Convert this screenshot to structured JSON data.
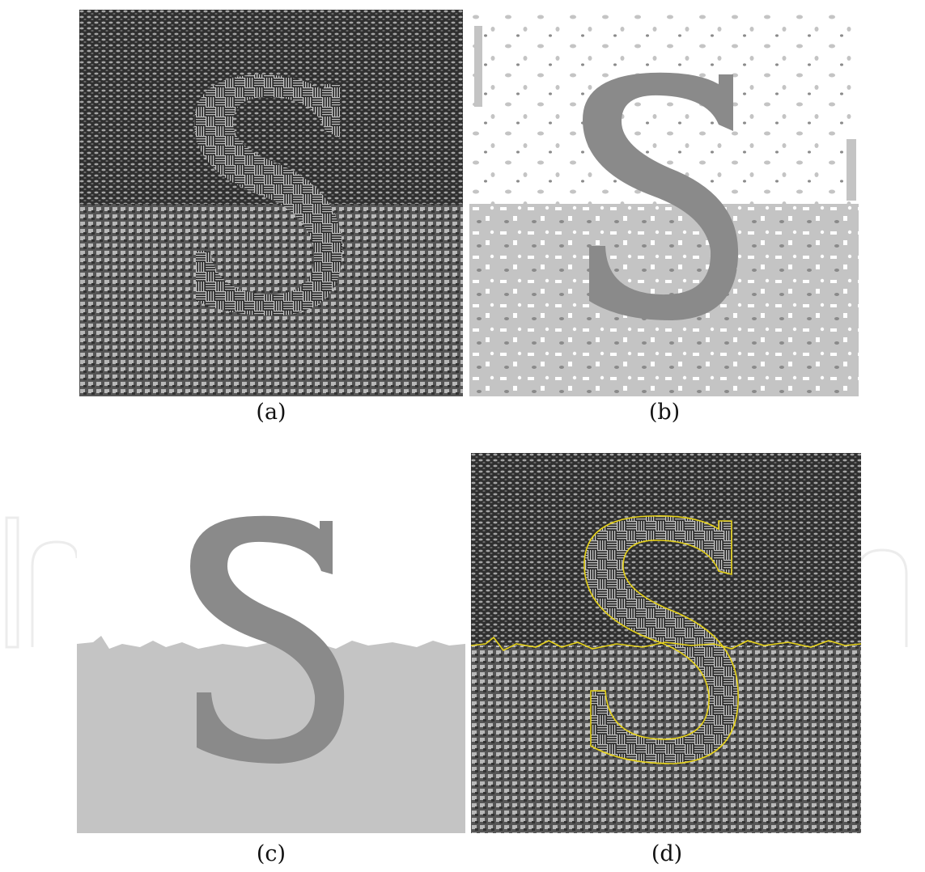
{
  "figure": {
    "panels": [
      {
        "id": "a",
        "caption": "(a)",
        "content": "textured-image"
      },
      {
        "id": "b",
        "caption": "(b)",
        "content": "noisy-segmentation"
      },
      {
        "id": "c",
        "caption": "(c)",
        "content": "clean-segmentation"
      },
      {
        "id": "d",
        "caption": "(d)",
        "content": "textured-image-with-boundary"
      }
    ],
    "colors": {
      "region_top_label": "#ffffff",
      "region_bottom_label": "#c4c4c4",
      "region_letter_label": "#8a8a8a",
      "boundary_line": "#e6d21a",
      "texture_dark": "#2e2e2e",
      "texture_light": "#a8a8a8"
    }
  }
}
